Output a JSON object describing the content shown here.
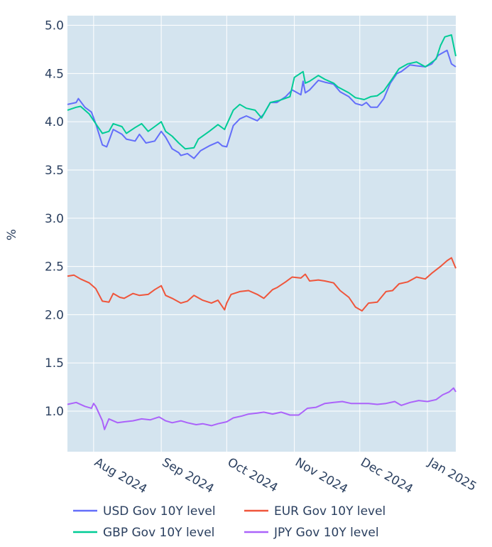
{
  "chart_data": {
    "type": "line",
    "title": "",
    "xlabel": "",
    "ylabel": "%",
    "x_ticks": [
      "Aug 2024",
      "Sep 2024",
      "Oct 2024",
      "Nov 2024",
      "Dec 2024",
      "Jan 2025"
    ],
    "y_ticks": [
      "1.0",
      "1.5",
      "2.0",
      "2.5",
      "3.0",
      "3.5",
      "4.0",
      "4.5",
      "5.0"
    ],
    "xlim": [
      "2024-07-20",
      "2025-01-14"
    ],
    "ylim": [
      0.58,
      5.1
    ],
    "grid": true,
    "legend_position": "bottom",
    "series": [
      {
        "name": "USD Gov 10Y level",
        "color": "#636efa",
        "x": [
          "2024-07-20",
          "2024-07-24",
          "2024-07-25",
          "2024-07-28",
          "2024-07-31",
          "2024-08-02",
          "2024-08-05",
          "2024-08-07",
          "2024-08-10",
          "2024-08-14",
          "2024-08-16",
          "2024-08-20",
          "2024-08-22",
          "2024-08-25",
          "2024-08-29",
          "2024-09-01",
          "2024-09-03",
          "2024-09-06",
          "2024-09-09",
          "2024-09-10",
          "2024-09-13",
          "2024-09-16",
          "2024-09-19",
          "2024-09-23",
          "2024-09-27",
          "2024-09-29",
          "2024-10-01",
          "2024-10-04",
          "2024-10-07",
          "2024-10-10",
          "2024-10-15",
          "2024-10-18",
          "2024-10-21",
          "2024-10-24",
          "2024-10-28",
          "2024-10-31",
          "2024-11-04",
          "2024-11-05",
          "2024-11-06",
          "2024-11-08",
          "2024-11-12",
          "2024-11-15",
          "2024-11-19",
          "2024-11-22",
          "2024-11-26",
          "2024-11-29",
          "2024-12-02",
          "2024-12-04",
          "2024-12-06",
          "2024-12-09",
          "2024-12-12",
          "2024-12-15",
          "2024-12-18",
          "2024-12-20",
          "2024-12-24",
          "2024-12-27",
          "2024-12-31",
          "2025-01-03",
          "2025-01-06",
          "2025-01-10",
          "2025-01-12",
          "2025-01-14"
        ],
        "y": [
          4.18,
          4.2,
          4.24,
          4.15,
          4.1,
          3.98,
          3.76,
          3.74,
          3.92,
          3.87,
          3.82,
          3.8,
          3.87,
          3.78,
          3.8,
          3.9,
          3.84,
          3.72,
          3.68,
          3.65,
          3.67,
          3.62,
          3.7,
          3.75,
          3.79,
          3.75,
          3.74,
          3.96,
          4.03,
          4.06,
          4.01,
          4.08,
          4.2,
          4.2,
          4.26,
          4.33,
          4.28,
          4.42,
          4.3,
          4.33,
          4.43,
          4.41,
          4.39,
          4.31,
          4.26,
          4.19,
          4.17,
          4.2,
          4.15,
          4.15,
          4.24,
          4.4,
          4.5,
          4.52,
          4.59,
          4.58,
          4.57,
          4.6,
          4.69,
          4.74,
          4.6,
          4.57
        ]
      },
      {
        "name": "GBP Gov 10Y level",
        "color": "#00cc96",
        "x": [
          "2024-07-20",
          "2024-07-24",
          "2024-07-26",
          "2024-07-30",
          "2024-08-02",
          "2024-08-05",
          "2024-08-08",
          "2024-08-10",
          "2024-08-14",
          "2024-08-16",
          "2024-08-20",
          "2024-08-23",
          "2024-08-26",
          "2024-08-29",
          "2024-09-01",
          "2024-09-03",
          "2024-09-06",
          "2024-09-09",
          "2024-09-12",
          "2024-09-16",
          "2024-09-18",
          "2024-09-23",
          "2024-09-27",
          "2024-09-30",
          "2024-10-01",
          "2024-10-04",
          "2024-10-07",
          "2024-10-10",
          "2024-10-14",
          "2024-10-17",
          "2024-10-21",
          "2024-10-25",
          "2024-10-30",
          "2024-11-01",
          "2024-11-05",
          "2024-11-06",
          "2024-11-08",
          "2024-11-12",
          "2024-11-15",
          "2024-11-19",
          "2024-11-21",
          "2024-11-26",
          "2024-11-29",
          "2024-12-03",
          "2024-12-06",
          "2024-12-09",
          "2024-12-12",
          "2024-12-16",
          "2024-12-19",
          "2024-12-23",
          "2024-12-27",
          "2024-12-31",
          "2025-01-02",
          "2025-01-05",
          "2025-01-07",
          "2025-01-09",
          "2025-01-12",
          "2025-01-14"
        ],
        "y": [
          4.12,
          4.15,
          4.16,
          4.08,
          3.98,
          3.88,
          3.9,
          3.98,
          3.95,
          3.88,
          3.94,
          3.98,
          3.9,
          3.95,
          4.0,
          3.9,
          3.85,
          3.78,
          3.72,
          3.73,
          3.82,
          3.9,
          3.97,
          3.92,
          3.97,
          4.12,
          4.18,
          4.14,
          4.12,
          4.04,
          4.2,
          4.22,
          4.26,
          4.46,
          4.52,
          4.4,
          4.42,
          4.48,
          4.44,
          4.4,
          4.36,
          4.3,
          4.25,
          4.23,
          4.26,
          4.27,
          4.32,
          4.45,
          4.55,
          4.6,
          4.62,
          4.57,
          4.6,
          4.65,
          4.79,
          4.88,
          4.9,
          4.68
        ]
      },
      {
        "name": "EUR Gov 10Y level",
        "color": "#ef553b",
        "x": [
          "2024-07-20",
          "2024-07-23",
          "2024-07-26",
          "2024-07-30",
          "2024-08-02",
          "2024-08-05",
          "2024-08-08",
          "2024-08-10",
          "2024-08-13",
          "2024-08-15",
          "2024-08-19",
          "2024-08-22",
          "2024-08-26",
          "2024-08-29",
          "2024-09-01",
          "2024-09-03",
          "2024-09-06",
          "2024-09-10",
          "2024-09-13",
          "2024-09-16",
          "2024-09-20",
          "2024-09-24",
          "2024-09-27",
          "2024-09-30",
          "2024-10-01",
          "2024-10-03",
          "2024-10-07",
          "2024-10-11",
          "2024-10-15",
          "2024-10-18",
          "2024-10-22",
          "2024-10-24",
          "2024-10-28",
          "2024-10-31",
          "2024-11-04",
          "2024-11-06",
          "2024-11-08",
          "2024-11-12",
          "2024-11-15",
          "2024-11-19",
          "2024-11-22",
          "2024-11-26",
          "2024-11-29",
          "2024-12-02",
          "2024-12-05",
          "2024-12-09",
          "2024-12-13",
          "2024-12-16",
          "2024-12-19",
          "2024-12-23",
          "2024-12-27",
          "2024-12-31",
          "2025-01-03",
          "2025-01-07",
          "2025-01-10",
          "2025-01-12",
          "2025-01-14"
        ],
        "y": [
          2.4,
          2.41,
          2.37,
          2.33,
          2.27,
          2.14,
          2.13,
          2.22,
          2.18,
          2.17,
          2.22,
          2.2,
          2.21,
          2.26,
          2.3,
          2.2,
          2.17,
          2.12,
          2.14,
          2.2,
          2.15,
          2.12,
          2.15,
          2.05,
          2.12,
          2.21,
          2.24,
          2.25,
          2.21,
          2.17,
          2.26,
          2.28,
          2.34,
          2.39,
          2.38,
          2.42,
          2.35,
          2.36,
          2.35,
          2.33,
          2.25,
          2.18,
          2.08,
          2.04,
          2.12,
          2.13,
          2.24,
          2.25,
          2.32,
          2.34,
          2.39,
          2.37,
          2.43,
          2.5,
          2.56,
          2.59,
          2.48
        ]
      },
      {
        "name": "JPY Gov 10Y level",
        "color": "#ab63fa",
        "x": [
          "2024-07-20",
          "2024-07-24",
          "2024-07-28",
          "2024-07-31",
          "2024-08-01",
          "2024-08-02",
          "2024-08-05",
          "2024-08-06",
          "2024-08-08",
          "2024-08-12",
          "2024-08-15",
          "2024-08-19",
          "2024-08-23",
          "2024-08-27",
          "2024-08-31",
          "2024-09-03",
          "2024-09-06",
          "2024-09-10",
          "2024-09-13",
          "2024-09-17",
          "2024-09-20",
          "2024-09-24",
          "2024-09-27",
          "2024-10-01",
          "2024-10-04",
          "2024-10-08",
          "2024-10-11",
          "2024-10-15",
          "2024-10-18",
          "2024-10-22",
          "2024-10-26",
          "2024-10-30",
          "2024-11-03",
          "2024-11-07",
          "2024-11-11",
          "2024-11-15",
          "2024-11-19",
          "2024-11-23",
          "2024-11-27",
          "2024-12-01",
          "2024-12-05",
          "2024-12-09",
          "2024-12-13",
          "2024-12-17",
          "2024-12-20",
          "2024-12-24",
          "2024-12-28",
          "2025-01-01",
          "2025-01-05",
          "2025-01-08",
          "2025-01-11",
          "2025-01-13",
          "2025-01-14"
        ],
        "y": [
          1.07,
          1.09,
          1.05,
          1.03,
          1.08,
          1.05,
          0.9,
          0.81,
          0.92,
          0.88,
          0.89,
          0.9,
          0.92,
          0.91,
          0.94,
          0.9,
          0.88,
          0.9,
          0.88,
          0.86,
          0.87,
          0.85,
          0.87,
          0.89,
          0.93,
          0.95,
          0.97,
          0.98,
          0.99,
          0.97,
          0.99,
          0.96,
          0.96,
          1.03,
          1.04,
          1.08,
          1.09,
          1.1,
          1.08,
          1.08,
          1.08,
          1.07,
          1.08,
          1.1,
          1.06,
          1.09,
          1.11,
          1.1,
          1.12,
          1.17,
          1.2,
          1.24,
          1.2
        ]
      }
    ]
  }
}
